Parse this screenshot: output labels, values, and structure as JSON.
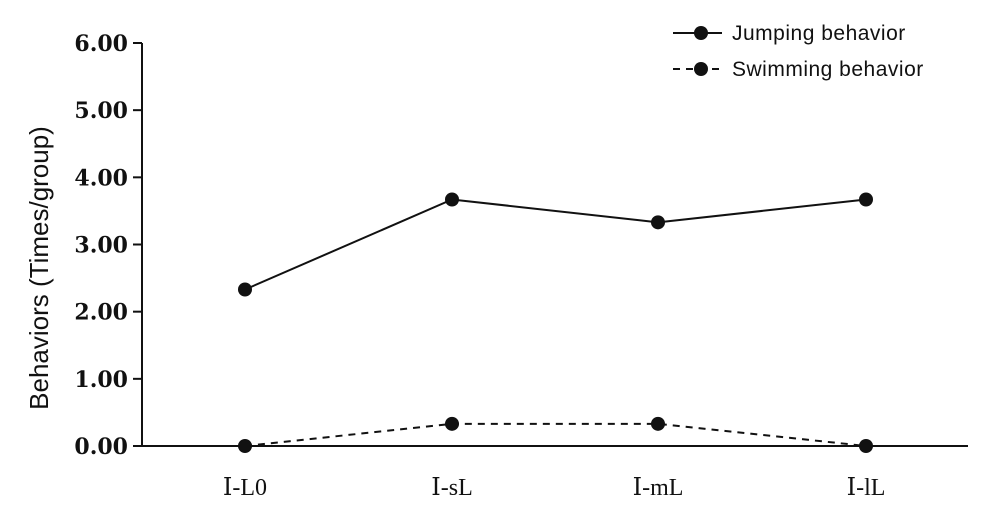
{
  "chart_data": {
    "type": "line",
    "categories": [
      "Ⅰ-L0",
      "Ⅰ-sL",
      "Ⅰ-mL",
      "Ⅰ-lL"
    ],
    "series": [
      {
        "name": "Jumping behavior",
        "values": [
          2.33,
          3.67,
          3.33,
          3.67
        ],
        "line_style": "solid",
        "color": "#111111"
      },
      {
        "name": "Swimming behavior",
        "values": [
          0.0,
          0.33,
          0.33,
          0.0
        ],
        "line_style": "dashed",
        "color": "#111111"
      }
    ],
    "xlabel": "",
    "ylabel": "Behaviors  (Times/group)",
    "ylim": [
      0,
      6
    ],
    "yticks": [
      "0.00",
      "1.00",
      "2.00",
      "3.00",
      "4.00",
      "5.00",
      "6.00"
    ],
    "grid": false,
    "legend_position": "top-right"
  }
}
